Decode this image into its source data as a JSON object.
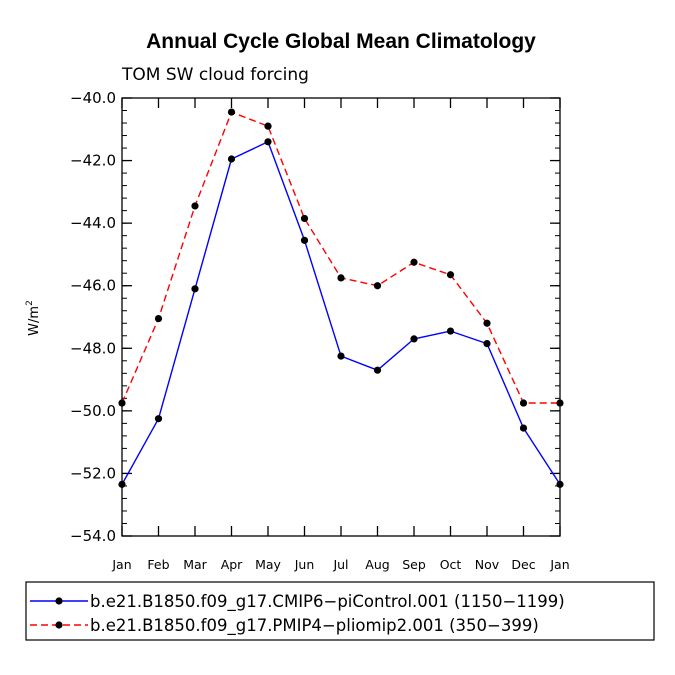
{
  "chart_data": {
    "type": "line",
    "title": "Annual Cycle Global Mean Climatology",
    "subtitle": "TOM SW cloud forcing",
    "ylabel_base": "W/m",
    "ylabel_sup": "2",
    "xlabel": "",
    "categories": [
      "Jan",
      "Feb",
      "Mar",
      "Apr",
      "May",
      "Jun",
      "Jul",
      "Aug",
      "Sep",
      "Oct",
      "Nov",
      "Dec",
      "Jan"
    ],
    "ylim": [
      -54.0,
      -40.0
    ],
    "y_ticks": [
      -40.0,
      -42.0,
      -44.0,
      -46.0,
      -48.0,
      -50.0,
      -52.0,
      -54.0
    ],
    "y_tick_labels": [
      "−40.0",
      "−42.0",
      "−44.0",
      "−46.0",
      "−48.0",
      "−50.0",
      "−52.0",
      "−54.0"
    ],
    "y_minor_step": 0.4,
    "series": [
      {
        "name": "b.e21.B1850.f09_g17.CMIP6−piControl.001 (1150−1199)",
        "color": "#0000ff",
        "dash": "solid",
        "values": [
          -52.35,
          -50.25,
          -46.1,
          -41.95,
          -41.4,
          -44.55,
          -48.25,
          -48.7,
          -47.7,
          -47.45,
          -47.85,
          -50.55,
          -52.35
        ]
      },
      {
        "name": "b.e21.B1850.f09_g17.PMIP4−pliomip2.001 (350−399)",
        "color": "#ff0000",
        "dash": "dashed",
        "values": [
          -49.75,
          -47.05,
          -43.45,
          -40.45,
          -40.9,
          -43.85,
          -45.75,
          -46.0,
          -45.25,
          -45.65,
          -47.2,
          -49.75,
          -49.75
        ]
      }
    ],
    "marker_color": "#000000",
    "legend_position": "bottom"
  }
}
